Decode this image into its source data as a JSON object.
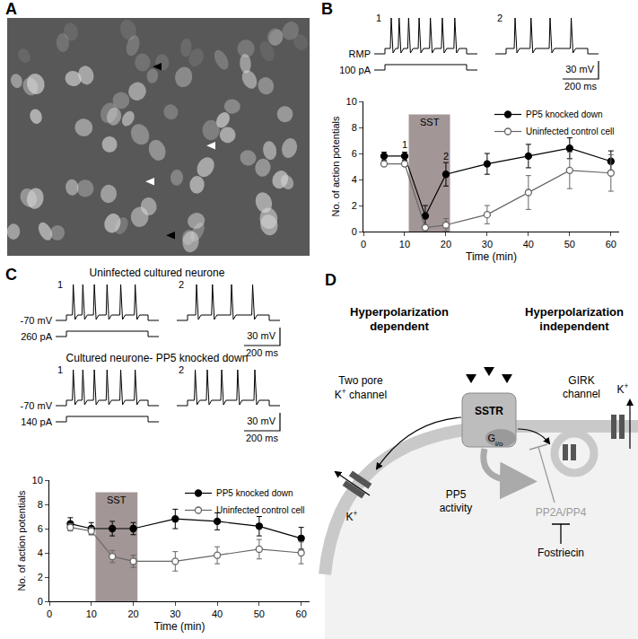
{
  "panel_a": {
    "label": "A"
  },
  "chart_data": [
    {
      "panel_label": "B",
      "type": "line",
      "x": [
        5,
        10,
        15,
        20,
        30,
        40,
        50,
        60
      ],
      "series": [
        {
          "name": "PP5 knocked down",
          "color": "#000000",
          "marker": "filled circle",
          "values": [
            5.8,
            5.8,
            1.2,
            4.4,
            5.2,
            5.8,
            6.4,
            5.4
          ],
          "error": [
            0.3,
            0.3,
            0.8,
            0.9,
            0.8,
            0.9,
            0.8,
            0.8
          ]
        },
        {
          "name": "Uninfected control cell",
          "color": "#666666",
          "marker": "open circle",
          "values": [
            5.2,
            5.2,
            0.3,
            0.5,
            1.3,
            3.0,
            4.7,
            4.5
          ],
          "error": [
            0.2,
            0.2,
            0.2,
            0.5,
            0.7,
            1.3,
            1.4,
            1.4
          ]
        }
      ],
      "xlabel": "Time (min)",
      "ylabel": "No. of action potentials",
      "xlim": [
        0,
        62
      ],
      "xticks": [
        0,
        10,
        20,
        30,
        40,
        50,
        60
      ],
      "ylim": [
        0,
        10
      ],
      "yticks": [
        0,
        2,
        4,
        6,
        8,
        10
      ],
      "grid": false,
      "legend": "top right",
      "shaded_region": {
        "label": "SST",
        "x": [
          11,
          21
        ],
        "y": [
          0,
          9
        ],
        "color": "#a39696"
      },
      "annotations": [
        {
          "text": "1",
          "x": 10,
          "y": 6.7
        },
        {
          "text": "2",
          "x": 20,
          "y": 5.8
        }
      ],
      "insets": [
        {
          "baseline_label": "RMP",
          "current_label": "100 pA",
          "traces": [
            {
              "label": "1",
              "spikes": 7
            },
            {
              "label": "2",
              "spikes": 4
            }
          ],
          "scale_voltage": "30 mV",
          "scale_time": "200 ms"
        }
      ]
    },
    {
      "panel_label": "C",
      "type": "line",
      "x": [
        5,
        10,
        15,
        20,
        30,
        40,
        50,
        60
      ],
      "series": [
        {
          "name": "PP5 knocked down",
          "color": "#000000",
          "marker": "filled circle",
          "values": [
            6.4,
            6.0,
            6.0,
            6.0,
            6.8,
            6.6,
            6.2,
            5.2
          ],
          "error": [
            0.5,
            0.5,
            0.6,
            0.5,
            0.8,
            0.7,
            0.8,
            0.9
          ]
        },
        {
          "name": "Uninfected control cell",
          "color": "#666666",
          "marker": "open circle",
          "values": [
            6.1,
            5.8,
            3.7,
            3.3,
            3.3,
            3.8,
            4.3,
            4.0
          ],
          "error": [
            0.3,
            0.3,
            0.5,
            0.5,
            0.8,
            0.7,
            0.8,
            0.9
          ]
        }
      ],
      "xlabel": "Time (min)",
      "ylabel": "No. of action potentials",
      "xlim": [
        0,
        62
      ],
      "xticks": [
        0,
        10,
        20,
        30,
        40,
        50,
        60
      ],
      "ylim": [
        0,
        10
      ],
      "yticks": [
        0,
        2,
        4,
        6,
        8,
        10
      ],
      "grid": false,
      "legend": "top right",
      "shaded_region": {
        "label": "SST",
        "x": [
          11,
          21
        ],
        "y": [
          0,
          9
        ],
        "color": "#a39696"
      },
      "insets": [
        {
          "title": "Uninfected cultured neurone",
          "baseline_label": "-70 mV",
          "current_label": "260 pA",
          "traces": [
            {
              "label": "1",
              "spikes": 6
            },
            {
              "label": "2",
              "spikes": 4
            }
          ],
          "scale_voltage": "30 mV",
          "scale_time": "200 ms"
        },
        {
          "title": "Cultured neurone- PP5 knocked down",
          "baseline_label": "-70 mV",
          "current_label": "140 pA",
          "traces": [
            {
              "label": "1",
              "spikes": 6
            },
            {
              "label": "2",
              "spikes": 5
            }
          ],
          "scale_voltage": "30 mV",
          "scale_time": "200 ms"
        }
      ]
    }
  ],
  "diagram": {
    "label": "D",
    "left_heading": [
      "Hyperpolarization",
      "dependent"
    ],
    "right_heading": [
      "Hyperpolarization",
      "independent"
    ],
    "two_pore": [
      "Two pore",
      "K+ channel"
    ],
    "girk": [
      "GIRK",
      "channel"
    ],
    "receptor": "SSTR",
    "g_protein": "Gi/o",
    "pp5": [
      "PP5",
      "activity"
    ],
    "phosphatases": "PP2A/PP4",
    "inhibitor": "Fostriecin",
    "ions": [
      "K+",
      "K+"
    ]
  }
}
